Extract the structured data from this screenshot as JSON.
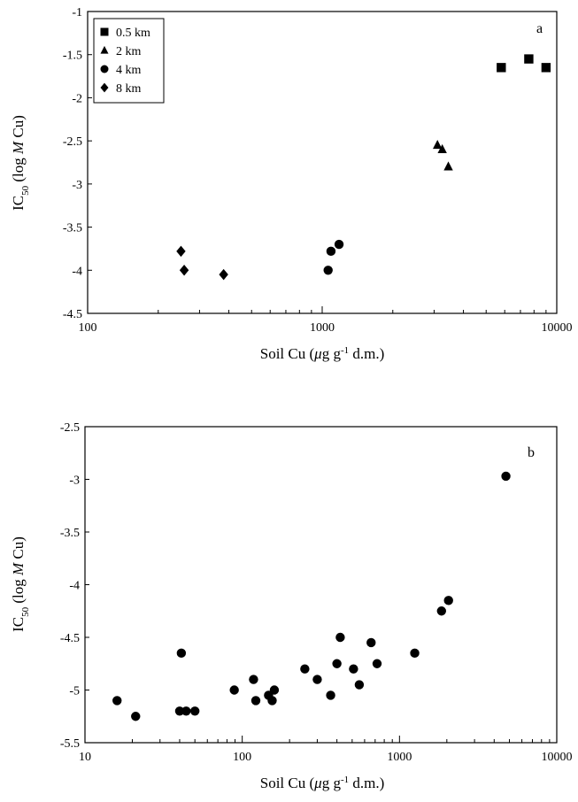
{
  "chart_data": [
    {
      "type": "scatter",
      "panel_label": "a",
      "x_scale": "log",
      "xlim": [
        100,
        10000
      ],
      "ylim": [
        -4.5,
        -1
      ],
      "x_ticks": [
        100,
        1000,
        10000
      ],
      "y_ticks": [
        -1,
        -1.5,
        -2,
        -2.5,
        -3,
        -3.5,
        -4,
        -4.5
      ],
      "xlabel": {
        "main": "Soil Cu (",
        "mu": "μ",
        "mid": "g g",
        "sup": "-1",
        "end": " d.m.)"
      },
      "ylabel": {
        "main": "IC",
        "sub": "50",
        "mid": " (log ",
        "italic": "M",
        "end": " Cu)"
      },
      "legend_placement": "top-left",
      "grid": false,
      "series": [
        {
          "name": "0.5 km",
          "marker": "square",
          "x": [
            5800,
            7600,
            9000
          ],
          "y": [
            -1.65,
            -1.55,
            -1.65
          ]
        },
        {
          "name": "2 km",
          "marker": "triangle",
          "x": [
            3100,
            3250,
            3450
          ],
          "y": [
            -2.55,
            -2.6,
            -2.8
          ]
        },
        {
          "name": "4 km",
          "marker": "circle",
          "x": [
            1060,
            1090,
            1180
          ],
          "y": [
            -4.0,
            -3.78,
            -3.7
          ]
        },
        {
          "name": "8 km",
          "marker": "diamond",
          "x": [
            250,
            258,
            380
          ],
          "y": [
            -3.78,
            -4.0,
            -4.05
          ]
        }
      ]
    },
    {
      "type": "scatter",
      "panel_label": "b",
      "x_scale": "log",
      "xlim": [
        10,
        10000
      ],
      "ylim": [
        -5.5,
        -2.5
      ],
      "x_ticks": [
        10,
        100,
        1000,
        10000
      ],
      "y_ticks": [
        -2.5,
        -3,
        -3.5,
        -4,
        -4.5,
        -5,
        -5.5
      ],
      "xlabel": {
        "main": "Soil Cu (",
        "mu": "μ",
        "mid": "g g",
        "sup": "-1",
        "end": " d.m.)"
      },
      "ylabel": {
        "main": "IC",
        "sub": "50",
        "mid": " (log ",
        "italic": "M",
        "end": " Cu)"
      },
      "grid": false,
      "series": [
        {
          "marker": "circle",
          "x": [
            16,
            21,
            40,
            41,
            44,
            50,
            89,
            118,
            122,
            147,
            155,
            160,
            250,
            300,
            365,
            400,
            420,
            510,
            555,
            660,
            720,
            1250,
            1850,
            2050,
            4750
          ],
          "y": [
            -5.1,
            -5.25,
            -5.2,
            -4.65,
            -5.2,
            -5.2,
            -5.0,
            -4.9,
            -5.1,
            -5.05,
            -5.1,
            -5.0,
            -4.8,
            -4.9,
            -5.05,
            -4.75,
            -4.5,
            -4.8,
            -4.95,
            -4.55,
            -4.75,
            -4.65,
            -4.25,
            -4.15,
            -2.97
          ]
        }
      ]
    }
  ]
}
